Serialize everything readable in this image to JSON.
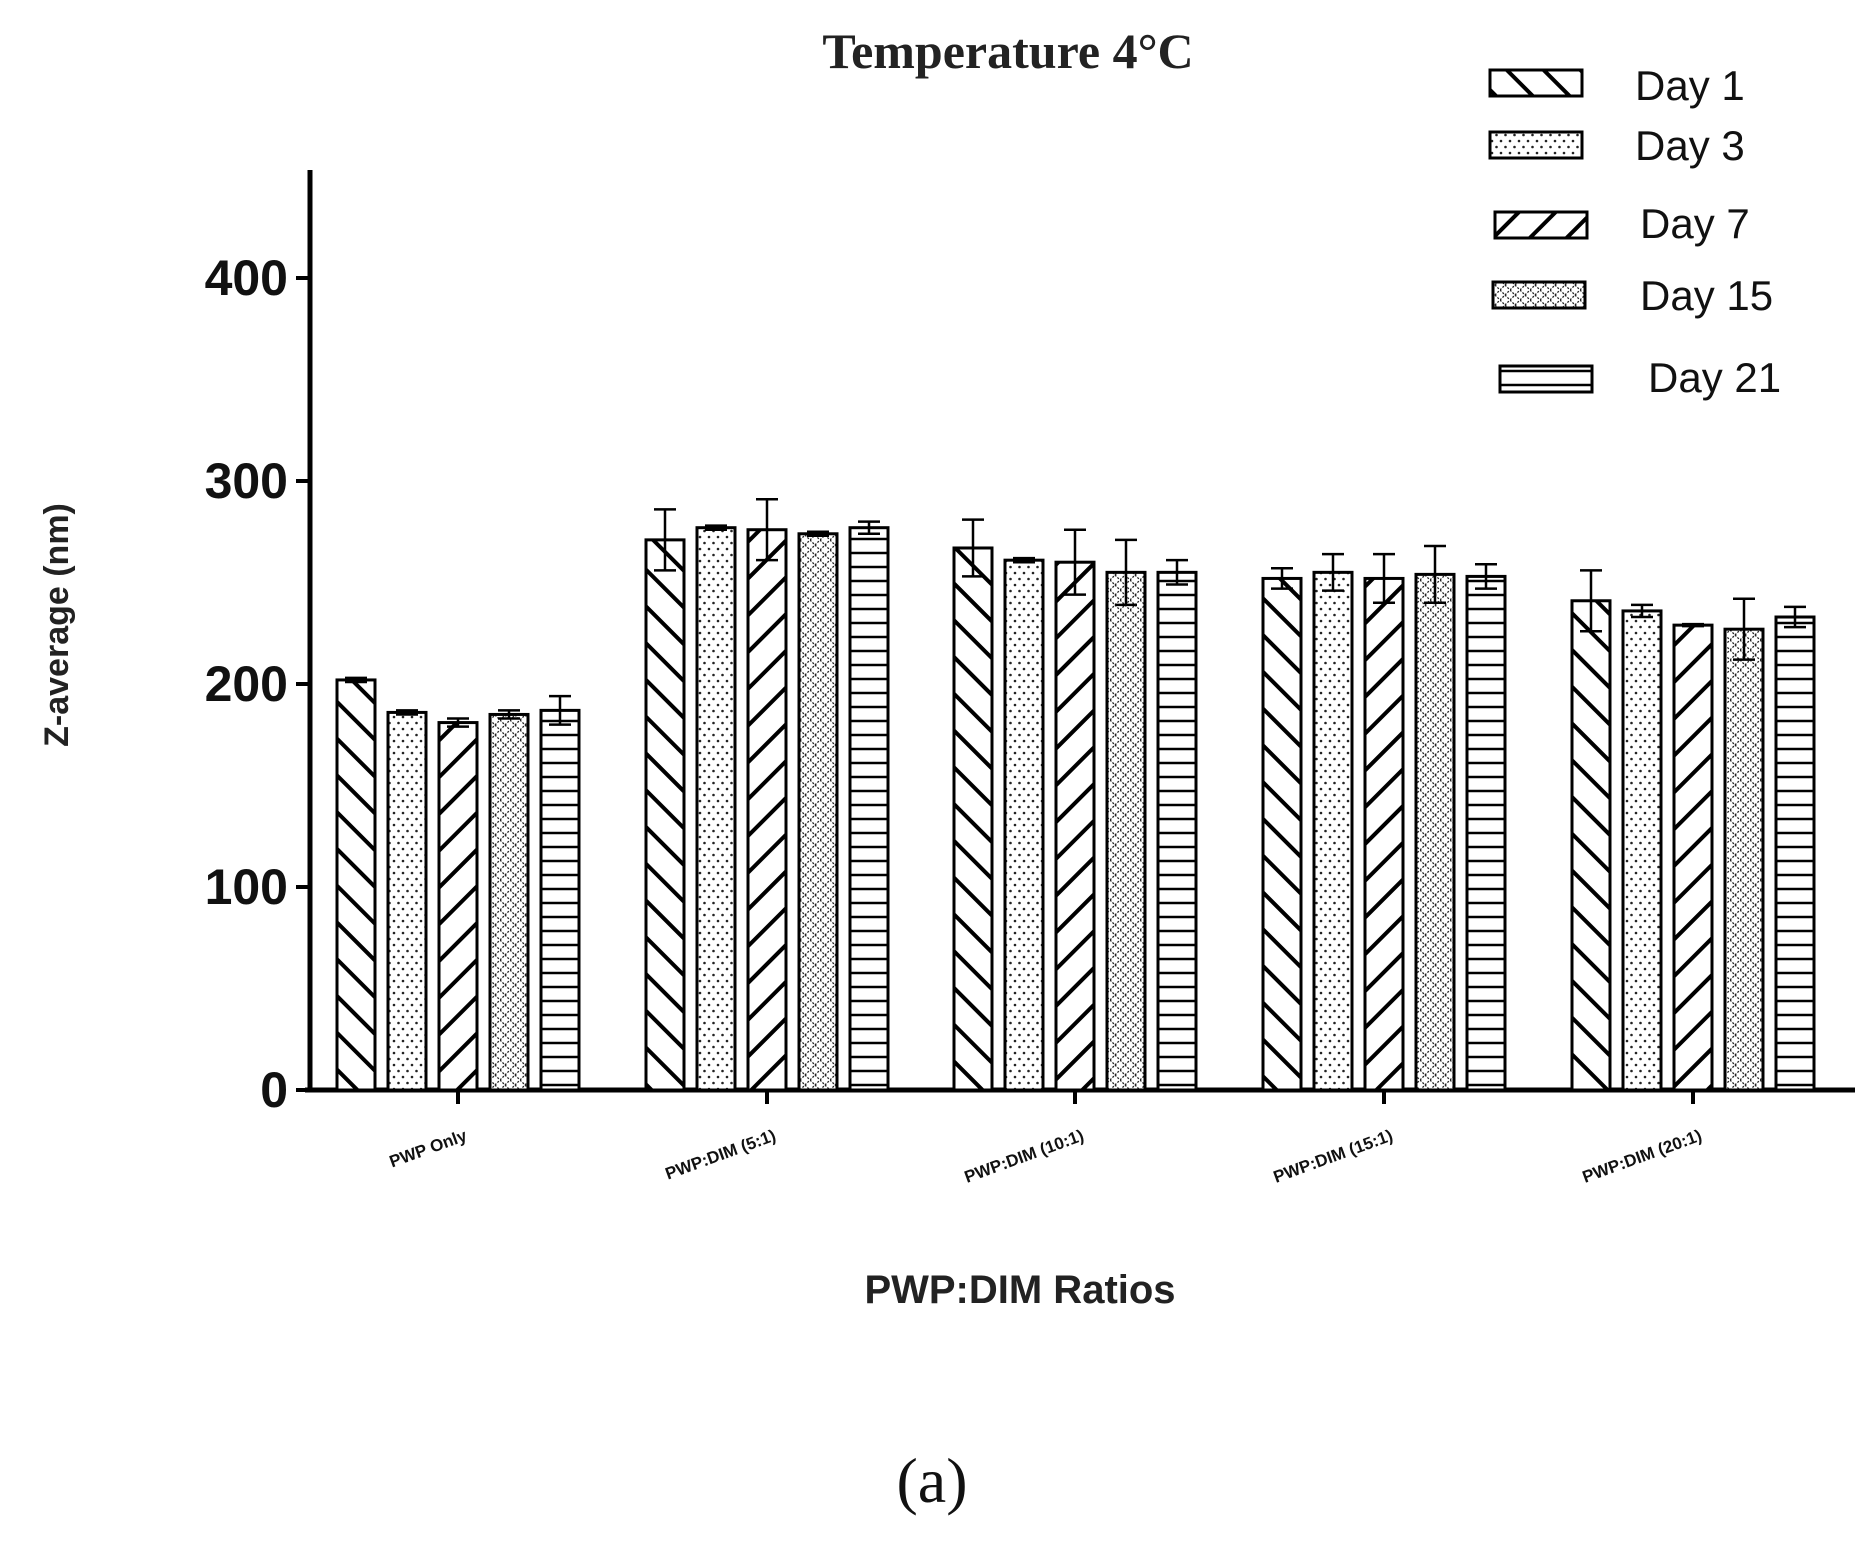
{
  "chart_data": {
    "type": "bar",
    "title": "Temperature 4°C",
    "xlabel": "PWP:DIM Ratios",
    "ylabel": "Z-average (nm)",
    "ylim": [
      0,
      450
    ],
    "yticks": [
      0,
      100,
      200,
      300,
      400
    ],
    "ytick_labels": [
      "0",
      "100",
      "200",
      "300",
      "400"
    ],
    "categories": [
      "PWP Only",
      "PWP:DIM (5:1)",
      "PWP:DIM (10:1)",
      "PWP:DIM (15:1)",
      "PWP:DIM (20:1)"
    ],
    "legend_position": "top-right",
    "series": [
      {
        "name": "Day 1",
        "pattern": "diag-back",
        "values": [
          202,
          271,
          267,
          252,
          241
        ],
        "errors": [
          1,
          15,
          14,
          5,
          15
        ]
      },
      {
        "name": "Day 3",
        "pattern": "dots",
        "values": [
          186,
          277,
          261,
          255,
          236
        ],
        "errors": [
          1,
          1,
          1,
          9,
          3
        ]
      },
      {
        "name": "Day 7",
        "pattern": "diag-forward",
        "values": [
          181,
          276,
          260,
          252,
          229
        ],
        "errors": [
          2,
          15,
          16,
          12,
          0.5
        ]
      },
      {
        "name": "Day 15",
        "pattern": "crosshatch",
        "values": [
          185,
          274,
          255,
          254,
          227
        ],
        "errors": [
          2,
          1,
          16,
          14,
          15
        ]
      },
      {
        "name": "Day 21",
        "pattern": "horizontal",
        "values": [
          187,
          277,
          255,
          253,
          233
        ],
        "errors": [
          7,
          3,
          6,
          6,
          5
        ]
      }
    ]
  },
  "caption": "(a)"
}
